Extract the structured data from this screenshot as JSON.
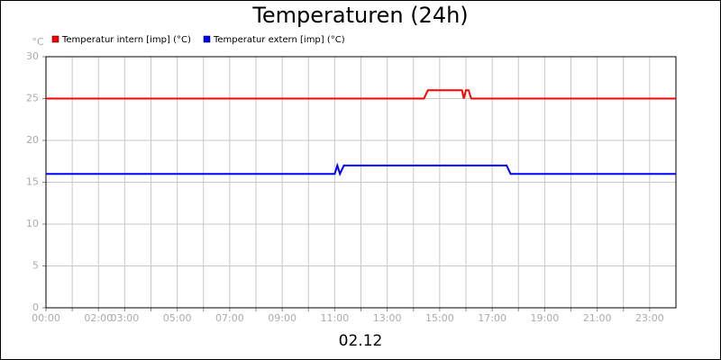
{
  "chart_data": {
    "type": "line",
    "title": "Temperaturen (24h)",
    "y_label": "°C",
    "x_label": "02.12",
    "series": [
      {
        "name": "Temperatur intern [imp] (°C)",
        "color": "#ff0000",
        "x": [
          0,
          14.4,
          14.55,
          15.85,
          15.92,
          16.0,
          16.1,
          16.2,
          24
        ],
        "values": [
          25,
          25,
          26,
          26,
          25,
          26,
          26,
          25,
          25
        ]
      },
      {
        "name": "Temperatur extern [imp] (°C)",
        "color": "#0000ff",
        "x": [
          0,
          11.0,
          11.1,
          11.2,
          11.35,
          17.55,
          17.7,
          24
        ],
        "values": [
          16,
          16,
          17,
          16,
          17,
          17,
          16,
          16
        ]
      }
    ],
    "xlim": [
      0,
      24
    ],
    "xticks": [
      {
        "value": 0,
        "label": "00:00"
      },
      {
        "value": 1,
        "label": null
      },
      {
        "value": 2,
        "label": "02:00"
      },
      {
        "value": 3,
        "label": "03:00"
      },
      {
        "value": 4,
        "label": null
      },
      {
        "value": 5,
        "label": "05:00"
      },
      {
        "value": 6,
        "label": null
      },
      {
        "value": 7,
        "label": "07:00"
      },
      {
        "value": 8,
        "label": null
      },
      {
        "value": 9,
        "label": "09:00"
      },
      {
        "value": 10,
        "label": null
      },
      {
        "value": 11,
        "label": "11:00"
      },
      {
        "value": 12,
        "label": null
      },
      {
        "value": 13,
        "label": "13:00"
      },
      {
        "value": 14,
        "label": null
      },
      {
        "value": 15,
        "label": "15:00"
      },
      {
        "value": 16,
        "label": null
      },
      {
        "value": 17,
        "label": "17:00"
      },
      {
        "value": 18,
        "label": null
      },
      {
        "value": 19,
        "label": "19:00"
      },
      {
        "value": 20,
        "label": null
      },
      {
        "value": 21,
        "label": "21:00"
      },
      {
        "value": 22,
        "label": null
      },
      {
        "value": 23,
        "label": "23:00"
      }
    ],
    "ylim": [
      0,
      30
    ],
    "yticks": [
      0,
      5,
      10,
      15,
      20,
      25,
      30
    ],
    "grid": true
  }
}
